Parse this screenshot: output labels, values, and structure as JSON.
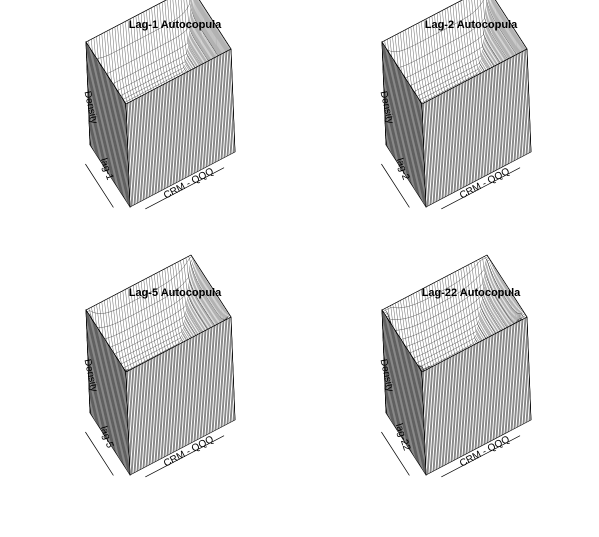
{
  "chart_data": [
    {
      "type": "surface",
      "title": "Lag-1 Autocopula",
      "x_label": "CRM - QQQ",
      "y_label": "lag-1",
      "z_label": "Density"
    },
    {
      "type": "surface",
      "title": "Lag-2 Autocopula",
      "x_label": "CRM - QQQ",
      "y_label": "lag-2",
      "z_label": "Density"
    },
    {
      "type": "surface",
      "title": "Lag-5 Autocopula",
      "x_label": "CRM - QQQ",
      "y_label": "lag-5",
      "z_label": "Density"
    },
    {
      "type": "surface",
      "title": "Lag-22 Autocopula",
      "x_label": "CRM - QQQ",
      "y_label": "lag-22",
      "z_label": "Density"
    }
  ]
}
